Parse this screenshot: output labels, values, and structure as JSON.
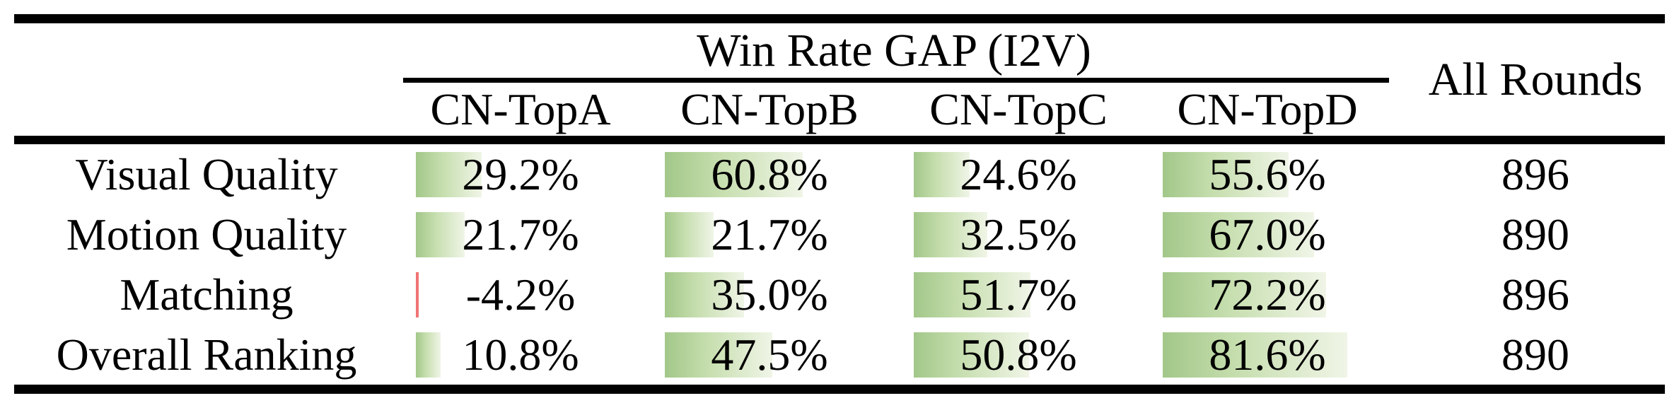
{
  "table": {
    "group_header": "Win Rate GAP (I2V)",
    "all_rounds_header": "All Rounds",
    "columns": [
      "CN-TopA",
      "CN-TopB",
      "CN-TopC",
      "CN-TopD"
    ],
    "rows": [
      {
        "label": "Visual Quality",
        "values": [
          29.2,
          60.8,
          24.6,
          55.6
        ],
        "all_rounds": "896"
      },
      {
        "label": "Motion Quality",
        "values": [
          21.7,
          21.7,
          32.5,
          67.0
        ],
        "all_rounds": "890"
      },
      {
        "label": "Matching",
        "values": [
          -4.2,
          35.0,
          51.7,
          72.2
        ],
        "all_rounds": "896"
      },
      {
        "label": "Overall Ranking",
        "values": [
          10.8,
          47.5,
          50.8,
          81.6
        ],
        "all_rounds": "890"
      }
    ],
    "colors": {
      "bar_gradient_start": "#a2c789",
      "bar_gradient_mid": "#c6deae",
      "bar_gradient_end": "#f0f5e7",
      "bar_negative": "#f07474",
      "rule": "#000000",
      "text": "#000000"
    }
  },
  "chart_data": {
    "type": "table",
    "title": "Win Rate GAP (I2V)",
    "categories": [
      "Visual Quality",
      "Motion Quality",
      "Matching",
      "Overall Ranking"
    ],
    "series": [
      {
        "name": "CN-TopA",
        "values": [
          29.2,
          21.7,
          -4.2,
          10.8
        ]
      },
      {
        "name": "CN-TopB",
        "values": [
          60.8,
          21.7,
          35.0,
          47.5
        ]
      },
      {
        "name": "CN-TopC",
        "values": [
          24.6,
          32.5,
          51.7,
          50.8
        ]
      },
      {
        "name": "CN-TopD",
        "values": [
          55.6,
          67.0,
          72.2,
          81.6
        ]
      },
      {
        "name": "All Rounds",
        "values": [
          896,
          890,
          896,
          890
        ]
      }
    ],
    "value_suffix": "%",
    "notes": "Green left-anchored gradient data bars proportional to positive percentage; thin red bar marks the single negative value (-4.2%). All Rounds column is a plain count."
  }
}
